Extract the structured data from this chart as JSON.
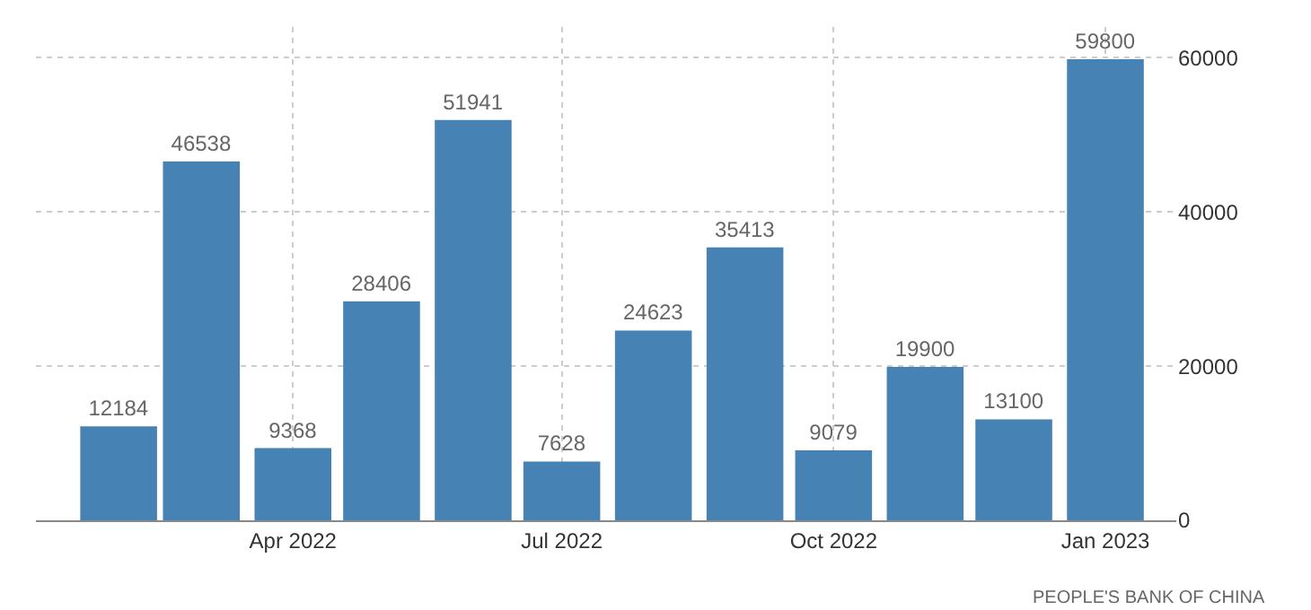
{
  "chart_data": {
    "type": "bar",
    "x": [
      "2022-02",
      "2022-03",
      "2022-04",
      "2022-05",
      "2022-06",
      "2022-07",
      "2022-08",
      "2022-09",
      "2022-10",
      "2022-11",
      "2022-12",
      "2023-01"
    ],
    "values": [
      12184,
      46538,
      9368,
      28406,
      51941,
      7628,
      24623,
      35413,
      9079,
      19900,
      13100,
      59800
    ],
    "color": "#4682b4",
    "data_labels": true,
    "xlim": [
      "2022-01-04",
      "2023-01-25"
    ],
    "xticks": [
      {
        "value": "2022-04",
        "label": "Apr 2022"
      },
      {
        "value": "2022-07",
        "label": "Jul 2022"
      },
      {
        "value": "2022-10",
        "label": "Oct 2022"
      },
      {
        "value": "2023-01",
        "label": "Jan 2023"
      }
    ],
    "ylim": [
      0,
      64000
    ],
    "yticks": [
      0,
      20000,
      40000,
      60000
    ],
    "grid": true,
    "annotations": [
      "PEOPLE'S BANK OF CHINA"
    ]
  }
}
